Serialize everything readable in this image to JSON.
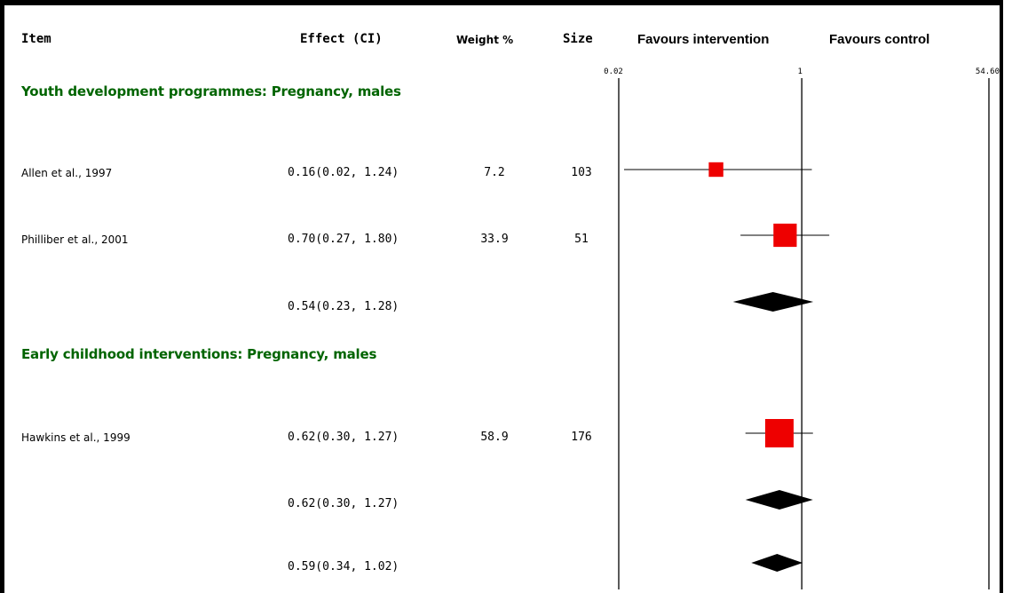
{
  "headers": {
    "item": "Item",
    "effect": "Effect (CI)",
    "weight": "Weight %",
    "size": "Size",
    "favours_intervention": "Favours intervention",
    "favours_control": "Favours control"
  },
  "sections": [
    "Youth development programmes: Pregnancy, males",
    "Early childhood interventions: Pregnancy, males"
  ],
  "rows": [
    {
      "item": "Allen et al., 1997",
      "effect": "0.16(0.02, 1.24)",
      "weight": "7.2",
      "size": "103"
    },
    {
      "item": "Philliber et al., 2001",
      "effect": "0.70(0.27, 1.80)",
      "weight": "33.9",
      "size": "51"
    },
    {
      "item": "",
      "effect": "0.54(0.23, 1.28)",
      "weight": "",
      "size": ""
    },
    {
      "item": "Hawkins et al., 1999",
      "effect": "0.62(0.30, 1.27)",
      "weight": "58.9",
      "size": "176"
    },
    {
      "item": "",
      "effect": "0.62(0.30, 1.27)",
      "weight": "",
      "size": ""
    },
    {
      "item": "",
      "effect": "0.59(0.34, 1.02)",
      "weight": "",
      "size": ""
    }
  ],
  "chart_data": {
    "type": "forest",
    "scale": "log",
    "axis_ticks": [
      {
        "value": 0.02,
        "label": "0.02"
      },
      {
        "value": 1,
        "label": "1"
      },
      {
        "value": 54.6,
        "label": "54.60"
      }
    ],
    "studies": [
      {
        "name": "Allen et al., 1997",
        "estimate": 0.16,
        "lower": 0.02,
        "upper": 1.24,
        "weight": 7.2,
        "size": 103
      },
      {
        "name": "Philliber et al., 2001",
        "estimate": 0.7,
        "lower": 0.27,
        "upper": 1.8,
        "weight": 33.9,
        "size": 51
      },
      {
        "name": "Hawkins et al., 1999",
        "estimate": 0.62,
        "lower": 0.3,
        "upper": 1.27,
        "weight": 58.9,
        "size": 176
      }
    ],
    "pooled": [
      {
        "estimate": 0.54,
        "lower": 0.23,
        "upper": 1.28
      },
      {
        "estimate": 0.62,
        "lower": 0.3,
        "upper": 1.27
      },
      {
        "estimate": 0.59,
        "lower": 0.34,
        "upper": 1.02
      }
    ],
    "colors": {
      "study_marker": "#ee0000",
      "pooled_marker": "#000000",
      "section_text": "#006400"
    }
  }
}
